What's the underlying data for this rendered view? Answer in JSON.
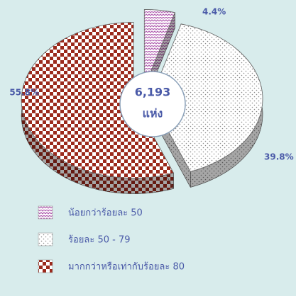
{
  "chart_data": {
    "type": "pie",
    "center_text": [
      "6,193",
      "แห่ง"
    ],
    "categories": [
      "น้อยกว่าร้อยละ 50",
      "ร้อยละ 50 - 79",
      "มากกว่าหรือเท่ากับร้อยละ 80"
    ],
    "values": [
      4.4,
      39.8,
      55.8
    ],
    "value_labels": [
      "4.4%",
      "39.8%",
      "55.8%"
    ],
    "colors": [
      "#b060b0",
      "#8a8a8a",
      "#9b2a1c"
    ],
    "legend": "bottom-left"
  }
}
